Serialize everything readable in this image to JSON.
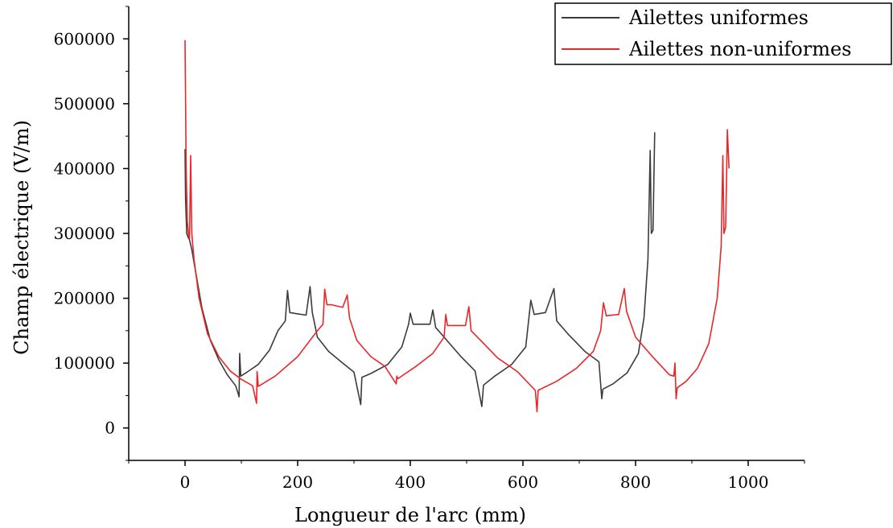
{
  "chart_data": {
    "type": "line",
    "xlabel": "Longueur de l'arc (mm)",
    "ylabel": "Champ électrique (V/m)",
    "xlim": [
      -100,
      1100
    ],
    "ylim": [
      -50000,
      650000
    ],
    "x_ticks": [
      0,
      200,
      400,
      600,
      800,
      1000
    ],
    "y_ticks": [
      0,
      100000,
      200000,
      300000,
      400000,
      500000,
      600000
    ],
    "legend_position": "top-right",
    "grid": false,
    "series": [
      {
        "name": "Ailettes uniformes",
        "color": "#3c3c3c",
        "points": [
          [
            0,
            430000
          ],
          [
            1,
            350000
          ],
          [
            3,
            300000
          ],
          [
            5,
            295000
          ],
          [
            8,
            290000
          ],
          [
            12,
            275000
          ],
          [
            20,
            235000
          ],
          [
            30,
            185000
          ],
          [
            45,
            135000
          ],
          [
            60,
            105000
          ],
          [
            75,
            82000
          ],
          [
            90,
            65000
          ],
          [
            96,
            48000
          ],
          [
            97,
            115000
          ],
          [
            99,
            80000
          ],
          [
            110,
            86000
          ],
          [
            130,
            98000
          ],
          [
            150,
            120000
          ],
          [
            165,
            150000
          ],
          [
            178,
            165000
          ],
          [
            182,
            212000
          ],
          [
            186,
            178000
          ],
          [
            200,
            176000
          ],
          [
            215,
            174000
          ],
          [
            222,
            218000
          ],
          [
            226,
            178000
          ],
          [
            235,
            140000
          ],
          [
            255,
            118000
          ],
          [
            280,
            100000
          ],
          [
            300,
            86000
          ],
          [
            312,
            36000
          ],
          [
            314,
            78000
          ],
          [
            330,
            84000
          ],
          [
            360,
            98000
          ],
          [
            385,
            125000
          ],
          [
            397,
            160000
          ],
          [
            400,
            177000
          ],
          [
            405,
            160000
          ],
          [
            435,
            160000
          ],
          [
            440,
            182000
          ],
          [
            445,
            155000
          ],
          [
            460,
            140000
          ],
          [
            490,
            110000
          ],
          [
            515,
            88000
          ],
          [
            527,
            33000
          ],
          [
            530,
            66000
          ],
          [
            550,
            80000
          ],
          [
            580,
            98000
          ],
          [
            605,
            125000
          ],
          [
            614,
            197000
          ],
          [
            620,
            175000
          ],
          [
            640,
            178000
          ],
          [
            655,
            215000
          ],
          [
            660,
            165000
          ],
          [
            680,
            145000
          ],
          [
            710,
            118000
          ],
          [
            735,
            102000
          ],
          [
            740,
            45000
          ],
          [
            742,
            60000
          ],
          [
            760,
            68000
          ],
          [
            785,
            85000
          ],
          [
            805,
            115000
          ],
          [
            815,
            170000
          ],
          [
            822,
            260000
          ],
          [
            826,
            428000
          ],
          [
            828,
            300000
          ],
          [
            831,
            305000
          ],
          [
            834,
            456000
          ]
        ]
      },
      {
        "name": "Ailettes non-uniformes",
        "color": "#e8272a",
        "points": [
          [
            0,
            598000
          ],
          [
            2,
            400000
          ],
          [
            4,
            320000
          ],
          [
            6,
            300000
          ],
          [
            8,
            292000
          ],
          [
            10,
            420000
          ],
          [
            12,
            300000
          ],
          [
            16,
            260000
          ],
          [
            25,
            200000
          ],
          [
            40,
            145000
          ],
          [
            60,
            110000
          ],
          [
            80,
            88000
          ],
          [
            100,
            75000
          ],
          [
            120,
            65000
          ],
          [
            127,
            38000
          ],
          [
            128,
            87000
          ],
          [
            130,
            64000
          ],
          [
            160,
            80000
          ],
          [
            200,
            110000
          ],
          [
            235,
            150000
          ],
          [
            245,
            160000
          ],
          [
            248,
            214000
          ],
          [
            252,
            190000
          ],
          [
            260,
            190000
          ],
          [
            280,
            186000
          ],
          [
            288,
            205000
          ],
          [
            292,
            170000
          ],
          [
            305,
            135000
          ],
          [
            330,
            110000
          ],
          [
            355,
            95000
          ],
          [
            375,
            68000
          ],
          [
            376,
            80000
          ],
          [
            378,
            76000
          ],
          [
            410,
            95000
          ],
          [
            440,
            115000
          ],
          [
            460,
            140000
          ],
          [
            463,
            175000
          ],
          [
            466,
            158000
          ],
          [
            498,
            158000
          ],
          [
            504,
            187000
          ],
          [
            508,
            150000
          ],
          [
            525,
            135000
          ],
          [
            555,
            108000
          ],
          [
            590,
            87000
          ],
          [
            622,
            58000
          ],
          [
            625,
            25000
          ],
          [
            627,
            58000
          ],
          [
            660,
            72000
          ],
          [
            695,
            92000
          ],
          [
            725,
            118000
          ],
          [
            738,
            150000
          ],
          [
            743,
            193000
          ],
          [
            748,
            173000
          ],
          [
            770,
            175000
          ],
          [
            780,
            215000
          ],
          [
            784,
            180000
          ],
          [
            800,
            140000
          ],
          [
            830,
            110000
          ],
          [
            860,
            82000
          ],
          [
            868,
            80000
          ],
          [
            870,
            100000
          ],
          [
            872,
            45000
          ],
          [
            874,
            62000
          ],
          [
            890,
            72000
          ],
          [
            910,
            92000
          ],
          [
            930,
            130000
          ],
          [
            945,
            200000
          ],
          [
            952,
            280000
          ],
          [
            955,
            420000
          ],
          [
            957,
            300000
          ],
          [
            960,
            310000
          ],
          [
            963,
            460000
          ],
          [
            966,
            400000
          ]
        ]
      }
    ]
  }
}
